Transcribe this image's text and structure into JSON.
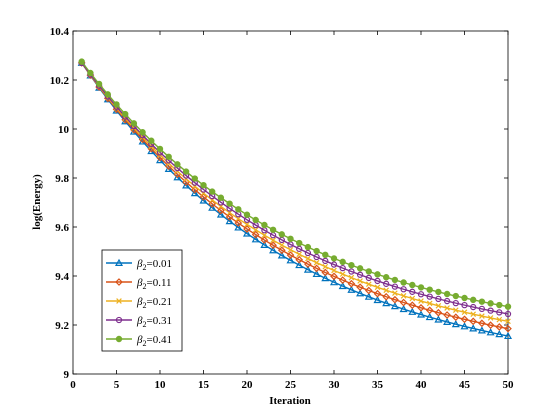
{
  "chart_data": {
    "type": "line",
    "title": "",
    "xlabel": "Iteration",
    "ylabel": "log(Energy)",
    "xlim": [
      0,
      50
    ],
    "ylim": [
      9,
      10.4
    ],
    "xticks": [
      0,
      5,
      10,
      15,
      20,
      25,
      30,
      35,
      40,
      45,
      50
    ],
    "yticks": [
      9,
      9.2,
      9.4,
      9.6,
      9.8,
      10,
      10.2,
      10.4
    ],
    "grid": false,
    "legend_position": "bottom-left",
    "x_range": [
      1,
      50
    ],
    "series": [
      {
        "name": "=0.01",
        "legend_symbol": "β",
        "legend_subscript": "2",
        "color": "#0072BD",
        "marker": "triangle",
        "start": 10.27,
        "end": 9.155,
        "decay_rate": 0.041
      },
      {
        "name": "=0.11",
        "legend_symbol": "β",
        "legend_subscript": "2",
        "color": "#D95319",
        "marker": "diamond",
        "start": 10.27,
        "end": 9.185,
        "decay_rate": 0.041
      },
      {
        "name": "=0.21",
        "legend_symbol": "β",
        "legend_subscript": "2",
        "color": "#EDB120",
        "marker": "x",
        "start": 10.27,
        "end": 9.215,
        "decay_rate": 0.041
      },
      {
        "name": "=0.31",
        "legend_symbol": "β",
        "legend_subscript": "2",
        "color": "#7E2F8E",
        "marker": "circle",
        "start": 10.27,
        "end": 9.245,
        "decay_rate": 0.041
      },
      {
        "name": "=0.41",
        "legend_symbol": "β",
        "legend_subscript": "2",
        "color": "#77AC30",
        "marker": "filled-circle",
        "start": 10.275,
        "end": 9.275,
        "decay_rate": 0.041
      }
    ]
  }
}
